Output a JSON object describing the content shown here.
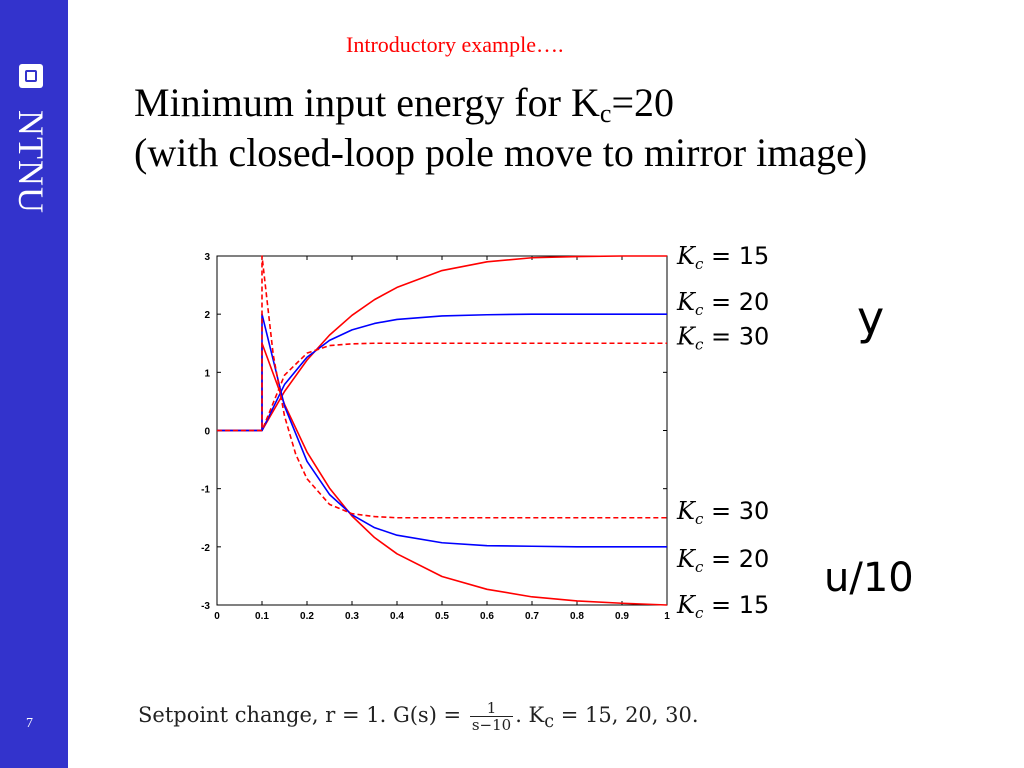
{
  "slide": {
    "subtitle": "Introductory example….",
    "title_line1_pre": "Minimum input energy for K",
    "title_line1_sub": "c",
    "title_line1_post": "=20",
    "title_line2": "(with closed-loop pole move to mirror image)",
    "page_number": "7",
    "logo_text": "NTNU"
  },
  "caption": {
    "prefix": "Setpoint change, r = 1.   G(s) = ",
    "frac_num": "1",
    "frac_den": "s−10",
    "suffix": ". K",
    "suffix_sub": "c",
    "suffix_rest": " = 15, 20, 30."
  },
  "colors": {
    "sidebar": "#3333cc",
    "red": "#ff0000",
    "blue": "#0000ff"
  },
  "chart_data": {
    "type": "line",
    "title": "",
    "xlabel": "",
    "ylabel": "",
    "xlim": [
      0,
      1
    ],
    "ylim": [
      -3,
      3
    ],
    "xticks": [
      0,
      0.1,
      0.2,
      0.3,
      0.4,
      0.5,
      0.6,
      0.7,
      0.8,
      0.9,
      1
    ],
    "yticks": [
      3,
      2,
      1,
      0,
      -1,
      -2,
      -3
    ],
    "grid": false,
    "annotations": {
      "y_group_label": "y",
      "u_group_label": "u/10",
      "y_labels": [
        "K_c = 15",
        "K_c = 20",
        "K_c = 30"
      ],
      "u_labels": [
        "K_c = 30",
        "K_c = 20",
        "K_c = 15"
      ]
    },
    "series": [
      {
        "group": "y",
        "kc": 15,
        "style": "solid",
        "color": "#ff0000",
        "x": [
          0,
          0.1,
          0.15,
          0.2,
          0.25,
          0.3,
          0.35,
          0.4,
          0.5,
          0.6,
          0.7,
          0.8,
          0.9,
          1.0
        ],
        "values": [
          0,
          0,
          0.67,
          1.21,
          1.64,
          1.98,
          2.25,
          2.46,
          2.75,
          2.9,
          2.97,
          2.99,
          3.0,
          3.0
        ]
      },
      {
        "group": "y",
        "kc": 20,
        "style": "solid",
        "color": "#0000ff",
        "x": [
          0,
          0.1,
          0.15,
          0.2,
          0.25,
          0.3,
          0.35,
          0.4,
          0.5,
          0.6,
          0.7,
          0.8,
          0.9,
          1.0
        ],
        "values": [
          0,
          0,
          0.79,
          1.26,
          1.55,
          1.73,
          1.84,
          1.91,
          1.97,
          1.99,
          2.0,
          2.0,
          2.0,
          2.0
        ]
      },
      {
        "group": "y",
        "kc": 30,
        "style": "dashed",
        "color": "#ff0000",
        "x": [
          0,
          0.1,
          0.15,
          0.2,
          0.25,
          0.3,
          0.35,
          0.4,
          0.5,
          0.6,
          0.7,
          0.8,
          0.9,
          1.0
        ],
        "values": [
          0,
          0,
          0.95,
          1.33,
          1.46,
          1.49,
          1.5,
          1.5,
          1.5,
          1.5,
          1.5,
          1.5,
          1.5,
          1.5
        ]
      },
      {
        "group": "u",
        "kc": 15,
        "style": "solid",
        "color": "#ff0000",
        "x": [
          0,
          0.1,
          0.1,
          0.15,
          0.2,
          0.25,
          0.3,
          0.35,
          0.4,
          0.5,
          0.6,
          0.7,
          0.8,
          0.9,
          1.0
        ],
        "values": [
          0,
          0,
          1.5,
          0.45,
          -0.37,
          -0.99,
          -1.47,
          -1.84,
          -2.12,
          -2.51,
          -2.73,
          -2.86,
          -2.93,
          -2.97,
          -3.0
        ]
      },
      {
        "group": "u",
        "kc": 20,
        "style": "solid",
        "color": "#0000ff",
        "x": [
          0,
          0.1,
          0.1,
          0.15,
          0.2,
          0.25,
          0.3,
          0.35,
          0.4,
          0.5,
          0.6,
          0.7,
          0.8,
          0.9,
          1.0
        ],
        "values": [
          0,
          0,
          2.0,
          0.42,
          -0.53,
          -1.1,
          -1.45,
          -1.67,
          -1.8,
          -1.93,
          -1.98,
          -1.99,
          -2.0,
          -2.0,
          -2.0
        ]
      },
      {
        "group": "u",
        "kc": 30,
        "style": "dashed",
        "color": "#ff0000",
        "x": [
          0,
          0.1,
          0.1,
          0.125,
          0.15,
          0.175,
          0.2,
          0.25,
          0.3,
          0.35,
          0.4,
          0.5,
          0.6,
          0.7,
          0.8,
          0.9,
          1.0
        ],
        "values": [
          0,
          0,
          3.0,
          1.3,
          0.25,
          -0.41,
          -0.83,
          -1.27,
          -1.43,
          -1.48,
          -1.5,
          -1.5,
          -1.5,
          -1.5,
          -1.5,
          -1.5,
          -1.5
        ]
      }
    ]
  }
}
